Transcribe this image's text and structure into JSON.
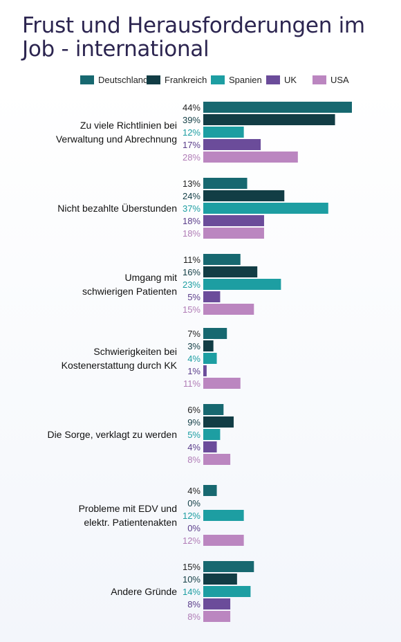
{
  "chart_data": {
    "type": "bar",
    "orientation": "horizontal",
    "title": "Frust und Herausforderungen im Job - international",
    "legend_position": "top",
    "grid": false,
    "xlim": [
      0,
      44
    ],
    "categories": [
      [
        "Zu viele Richtlinien bei",
        "Verwaltung und Abrechnung"
      ],
      [
        "Nicht bezahlte Überstunden"
      ],
      [
        "Umgang mit",
        "schwierigen Patienten"
      ],
      [
        "Schwierigkeiten bei",
        "Kostenerstattung durch KK"
      ],
      [
        "Die Sorge, verklagt zu werden"
      ],
      [
        "Probleme mit EDV und",
        "elektr. Patientenakten"
      ],
      [
        "Andere Gründe"
      ]
    ],
    "series": [
      {
        "name": "Deutschland",
        "color": "#176870",
        "label_color": "#1f1f1f",
        "values": [
          44,
          13,
          11,
          7,
          6,
          4,
          15
        ]
      },
      {
        "name": "Frankreich",
        "color": "#123d45",
        "label_color": "#123d45",
        "values": [
          39,
          24,
          16,
          3,
          9,
          0,
          10
        ]
      },
      {
        "name": "Spanien",
        "color": "#1d9ea2",
        "label_color": "#1d9ea2",
        "values": [
          12,
          37,
          23,
          4,
          5,
          12,
          14
        ]
      },
      {
        "name": "UK",
        "color": "#6b4c9a",
        "label_color": "#5a3d8a",
        "values": [
          17,
          18,
          5,
          1,
          4,
          0,
          8
        ]
      },
      {
        "name": "USA",
        "color": "#bb86c0",
        "label_color": "#b07cb6",
        "values": [
          28,
          18,
          15,
          11,
          8,
          12,
          8
        ]
      }
    ],
    "value_suffix": "%"
  }
}
